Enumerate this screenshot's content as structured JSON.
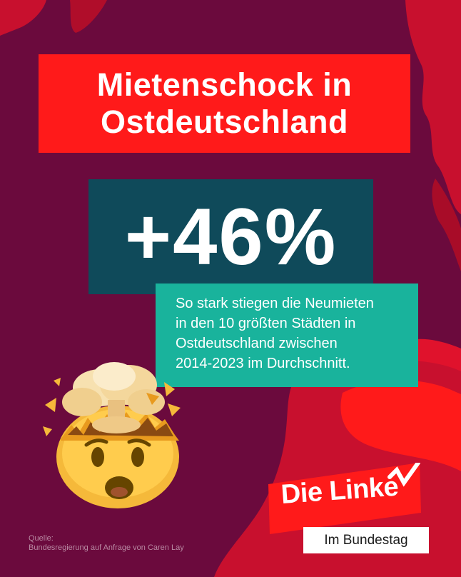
{
  "headline": {
    "line1": "Mietenschock in",
    "line2": "Ostdeutschland"
  },
  "stat": {
    "value": "+46%"
  },
  "description": {
    "lines": [
      "So stark stiegen die Neumieten",
      "in den 10 größten Städten in",
      "Ostdeutschland zwischen",
      "2014-2023 im Durchschnitt."
    ]
  },
  "source": {
    "label": "Quelle:",
    "text": "Bundesregierung auf Anfrage von Caren Lay"
  },
  "logo": {
    "brand": "Die Linke",
    "subtitle": "Im Bundestag"
  },
  "emoji": {
    "icon": "exploding-head-icon"
  },
  "colors": {
    "background": "#6b0a3d",
    "accent_red": "#ff1a1a",
    "stat_box": "#0f4a5a",
    "desc_box": "#19b39c"
  }
}
